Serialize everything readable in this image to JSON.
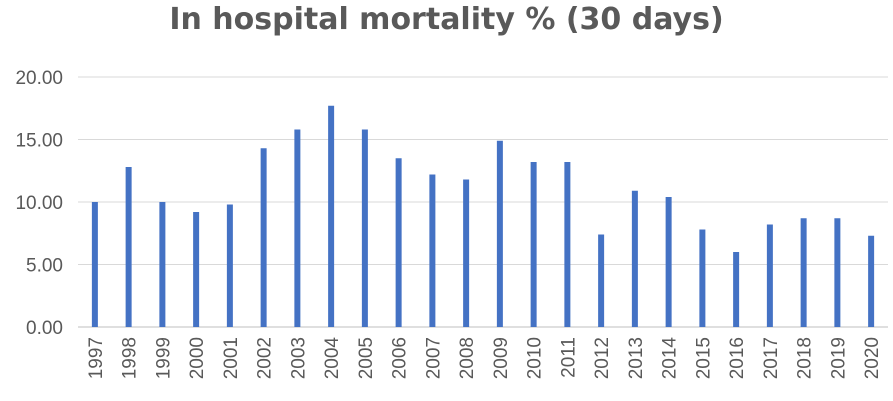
{
  "chart_data": {
    "type": "bar",
    "title": "In hospital mortality % (30 days)",
    "xlabel": "",
    "ylabel": "",
    "ylim": [
      0,
      20
    ],
    "y_ticks": [
      "0.00",
      "5.00",
      "10.00",
      "15.00",
      "20.00"
    ],
    "grid": true,
    "legend": "none",
    "bar_color": "#4472C4",
    "categories": [
      "1997",
      "1998",
      "1999",
      "2000",
      "2001",
      "2002",
      "2003",
      "2004",
      "2005",
      "2006",
      "2007",
      "2008",
      "2009",
      "2010",
      "2011",
      "2012",
      "2013",
      "2014",
      "2015",
      "2016",
      "2017",
      "2018",
      "2019",
      "2020"
    ],
    "values": [
      10.0,
      12.8,
      10.0,
      9.2,
      9.8,
      14.3,
      15.8,
      17.7,
      15.8,
      13.5,
      12.2,
      11.8,
      14.9,
      13.2,
      13.2,
      7.4,
      10.9,
      10.4,
      7.8,
      6.0,
      8.2,
      8.7,
      8.7,
      7.3
    ]
  }
}
